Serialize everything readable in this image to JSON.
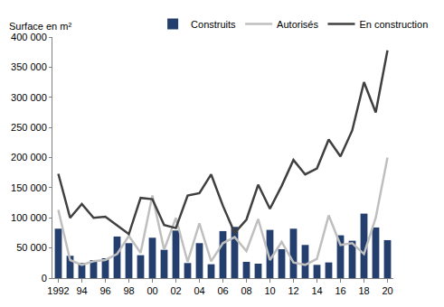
{
  "chart_data": {
    "type": "bar",
    "ylabel": "Surface en m²",
    "categories": [
      "1992",
      null,
      "94",
      null,
      "96",
      null,
      "98",
      null,
      "00",
      null,
      "02",
      null,
      "04",
      null,
      "06",
      null,
      "08",
      null,
      "10",
      null,
      "12",
      null,
      "14",
      null,
      "16",
      null,
      "18",
      null,
      "20"
    ],
    "series": [
      {
        "name": "Construits",
        "type": "bar",
        "color": "#243f6e",
        "values": [
          82000,
          37000,
          25000,
          30000,
          33000,
          69000,
          58000,
          38000,
          67000,
          47000,
          79000,
          25000,
          58000,
          23000,
          78000,
          85000,
          27000,
          24000,
          80000,
          48000,
          82000,
          55000,
          22000,
          26000,
          71000,
          62000,
          107000,
          84000,
          63000
        ]
      },
      {
        "name": "Autorisés",
        "type": "line",
        "color": "#bfbfbf",
        "values": [
          113000,
          30000,
          22000,
          28000,
          30000,
          40000,
          70000,
          42000,
          137000,
          47000,
          100000,
          27000,
          91000,
          28000,
          58000,
          68000,
          45000,
          98000,
          30000,
          60000,
          26000,
          22000,
          32000,
          104000,
          55000,
          58000,
          40000,
          100000,
          200000
        ]
      },
      {
        "name": "En construction",
        "type": "line",
        "color": "#404040",
        "values": [
          173000,
          100000,
          123000,
          100000,
          102000,
          88000,
          73000,
          133000,
          131000,
          88000,
          83000,
          137000,
          141000,
          172000,
          120000,
          75000,
          97000,
          155000,
          115000,
          153000,
          196000,
          172000,
          182000,
          230000,
          202000,
          245000,
          325000,
          275000,
          378000
        ]
      }
    ],
    "ylim": [
      0,
      400000
    ],
    "yticks": [
      0,
      {
        "value": 50000,
        "label": "50 000"
      },
      {
        "value": 100000,
        "label": "100 000"
      },
      {
        "value": 150000,
        "label": "150 000"
      },
      {
        "value": 200000,
        "label": "200 000"
      },
      {
        "value": 250000,
        "label": "250 000"
      },
      {
        "value": 300000,
        "label": "300 000"
      },
      {
        "value": 350000,
        "label": "350 000"
      },
      {
        "value": 400000,
        "label": "400 000"
      }
    ],
    "grid": false,
    "legend": "top"
  }
}
